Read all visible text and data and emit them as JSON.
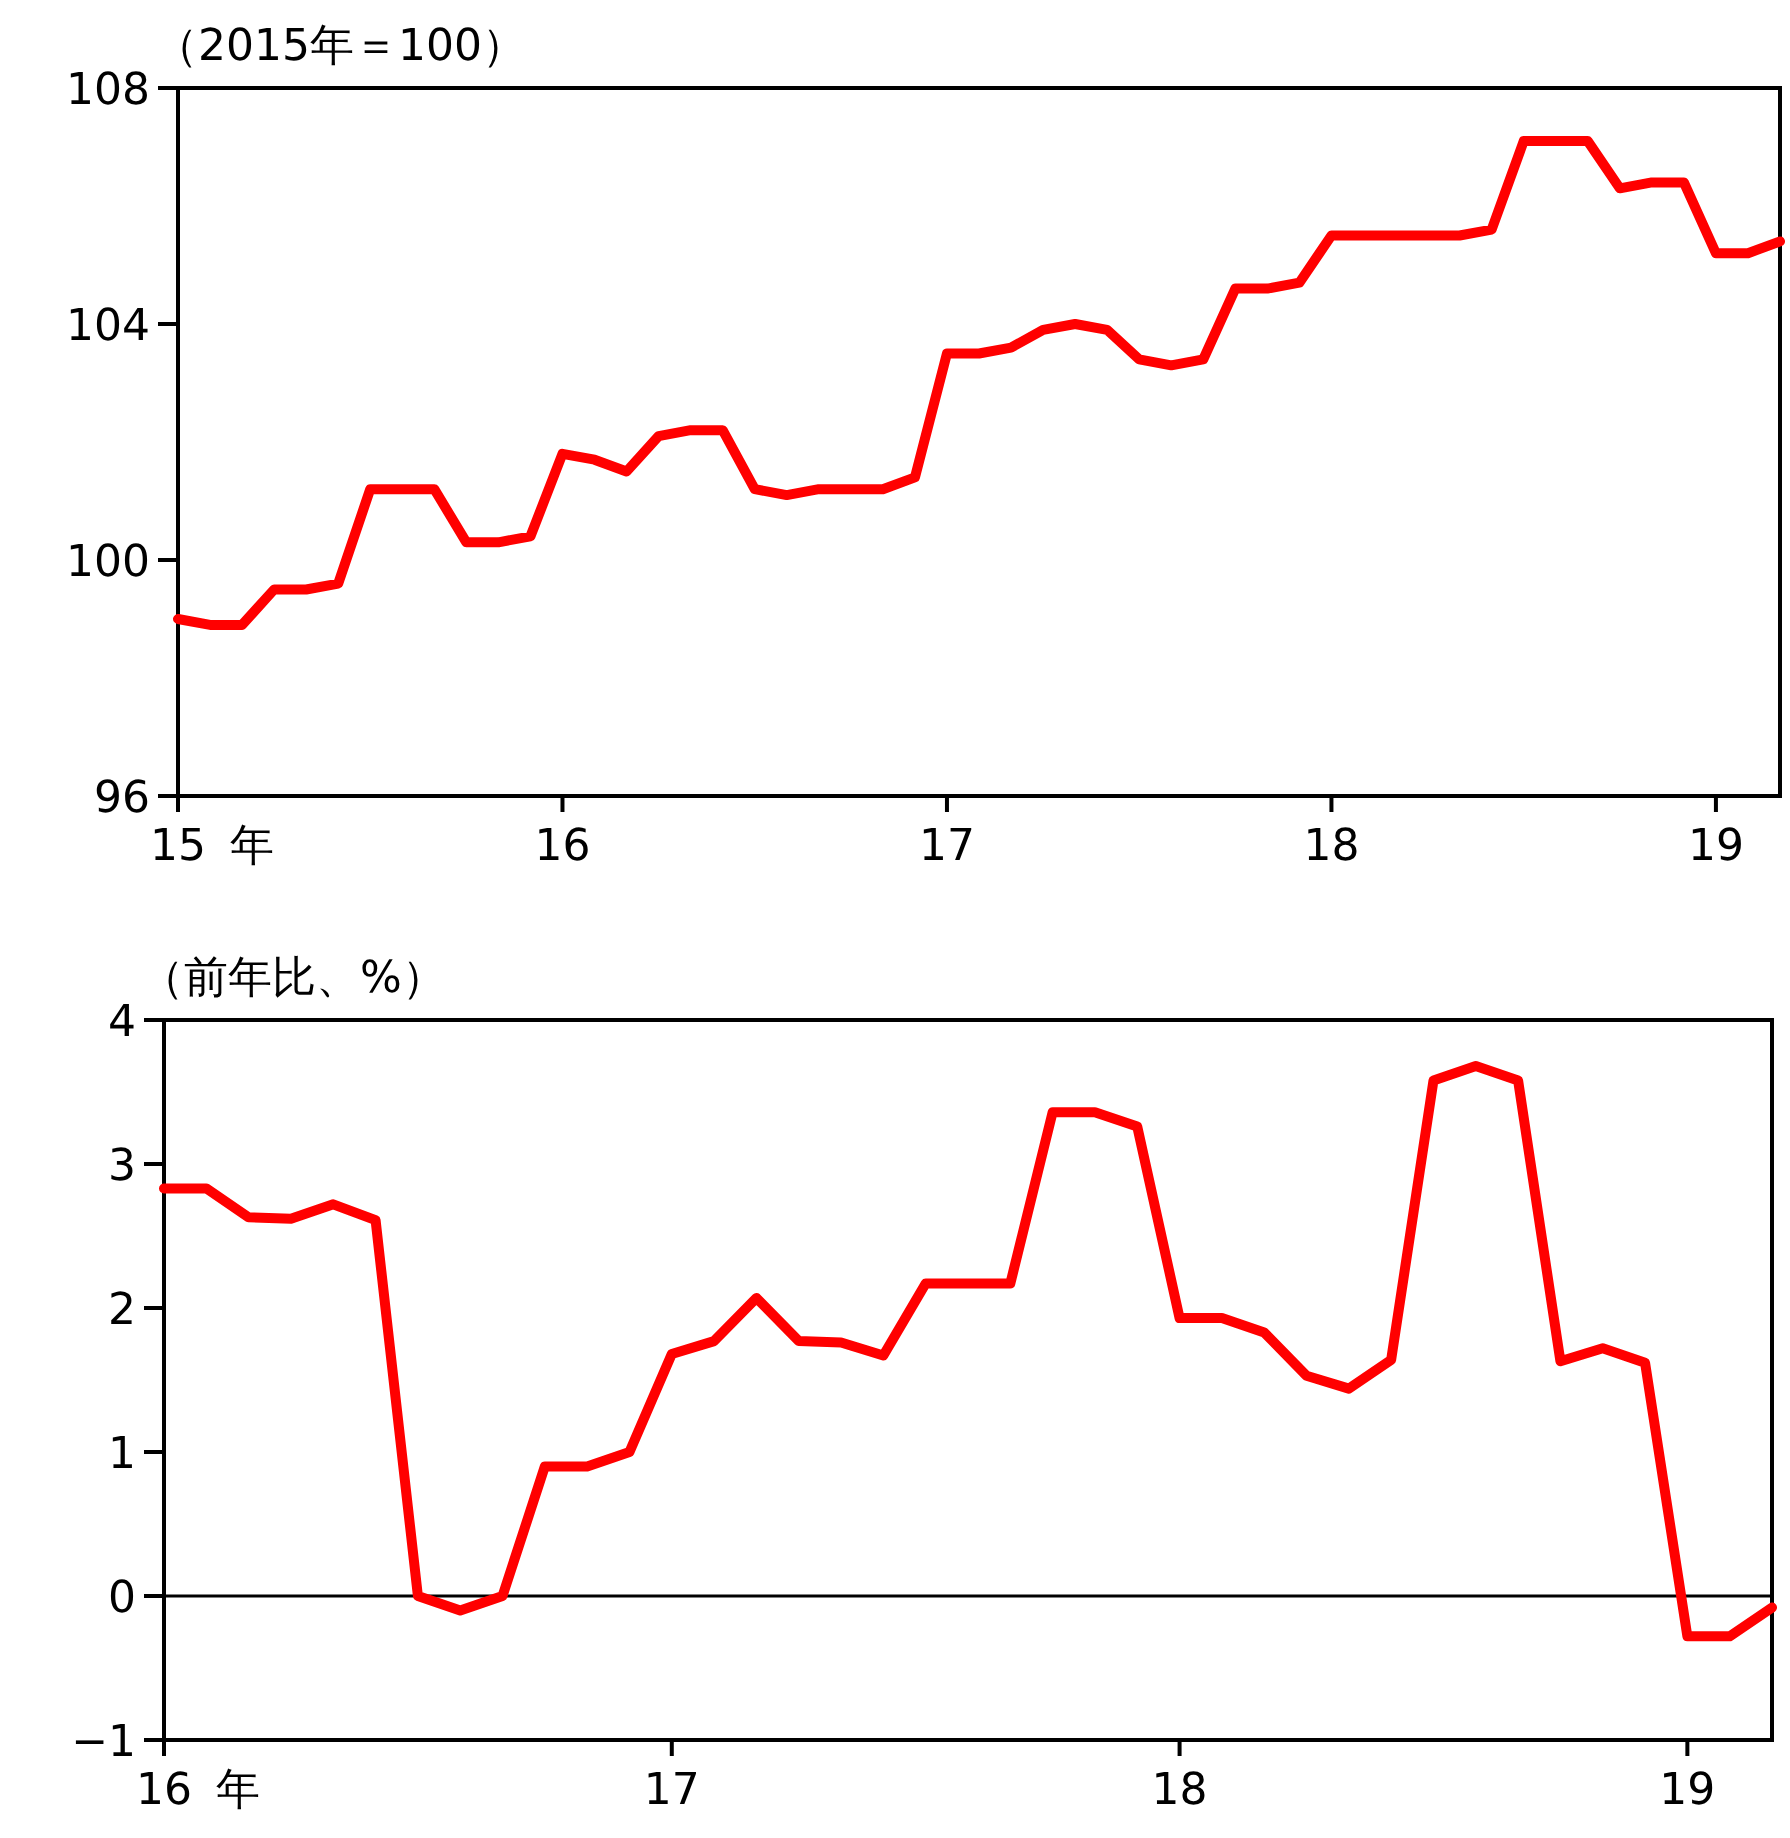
{
  "chart_data": [
    {
      "type": "line",
      "ylabel": "（2015年＝100）",
      "annotations": [
        "年"
      ],
      "x": [
        "2015-01",
        "2015-02",
        "2015-03",
        "2015-04",
        "2015-05",
        "2015-06",
        "2015-07",
        "2015-08",
        "2015-09",
        "2015-10",
        "2015-11",
        "2015-12",
        "2016-01",
        "2016-02",
        "2016-03",
        "2016-04",
        "2016-05",
        "2016-06",
        "2016-07",
        "2016-08",
        "2016-09",
        "2016-10",
        "2016-11",
        "2016-12",
        "2017-01",
        "2017-02",
        "2017-03",
        "2017-04",
        "2017-05",
        "2017-06",
        "2017-07",
        "2017-08",
        "2017-09",
        "2017-10",
        "2017-11",
        "2017-12",
        "2018-01",
        "2018-02",
        "2018-03",
        "2018-04",
        "2018-05",
        "2018-06",
        "2018-07",
        "2018-08",
        "2018-09",
        "2018-10",
        "2018-11",
        "2018-12",
        "2019-01",
        "2019-02",
        "2019-03"
      ],
      "series": [
        {
          "color": "#ff0000",
          "values": [
            99.0,
            98.9,
            98.9,
            99.5,
            99.5,
            99.6,
            101.2,
            101.2,
            101.2,
            100.3,
            100.3,
            100.4,
            101.8,
            101.7,
            101.5,
            102.1,
            102.2,
            102.2,
            101.2,
            101.1,
            101.2,
            101.2,
            101.2,
            101.4,
            103.5,
            103.5,
            103.6,
            103.9,
            104.0,
            103.9,
            103.4,
            103.3,
            103.4,
            104.6,
            104.6,
            104.7,
            105.5,
            105.5,
            105.5,
            105.5,
            105.5,
            105.6,
            107.1,
            107.1,
            107.1,
            106.3,
            106.4,
            106.4,
            105.2,
            105.2,
            105.4
          ]
        }
      ],
      "xlim": [
        "2015-01",
        "2019-03"
      ],
      "ylim": [
        96,
        108
      ],
      "yticks": [
        96,
        100,
        104,
        108
      ],
      "xticks": [
        {
          "value": "2015-01",
          "label": "15"
        },
        {
          "value": "2016-01",
          "label": "16"
        },
        {
          "value": "2017-01",
          "label": "17"
        },
        {
          "value": "2018-01",
          "label": "18"
        },
        {
          "value": "2019-01",
          "label": "19"
        }
      ],
      "grid": false
    },
    {
      "type": "line",
      "ylabel": "（前年比、%）",
      "annotations": [
        "年"
      ],
      "x": [
        "2016-01",
        "2016-02",
        "2016-03",
        "2016-04",
        "2016-05",
        "2016-06",
        "2016-07",
        "2016-08",
        "2016-09",
        "2016-10",
        "2016-11",
        "2016-12",
        "2017-01",
        "2017-02",
        "2017-03",
        "2017-04",
        "2017-05",
        "2017-06",
        "2017-07",
        "2017-08",
        "2017-09",
        "2017-10",
        "2017-11",
        "2017-12",
        "2018-01",
        "2018-02",
        "2018-03",
        "2018-04",
        "2018-05",
        "2018-06",
        "2018-07",
        "2018-08",
        "2018-09",
        "2018-10",
        "2018-11",
        "2018-12",
        "2019-01",
        "2019-02",
        "2019-03"
      ],
      "series": [
        {
          "color": "#ff0000",
          "values": [
            2.83,
            2.83,
            2.63,
            2.62,
            2.72,
            2.61,
            0.0,
            -0.1,
            0.0,
            0.9,
            0.9,
            1.0,
            1.68,
            1.77,
            2.07,
            1.77,
            1.76,
            1.67,
            2.17,
            2.17,
            2.17,
            3.36,
            3.36,
            3.26,
            1.93,
            1.93,
            1.83,
            1.53,
            1.44,
            1.64,
            3.58,
            3.68,
            3.58,
            1.63,
            1.72,
            1.62,
            -0.28,
            -0.28,
            -0.08
          ]
        }
      ],
      "xlim": [
        "2016-01",
        "2019-03"
      ],
      "ylim": [
        -1,
        4
      ],
      "yticks": [
        -1,
        0,
        1,
        2,
        3,
        4
      ],
      "xticks": [
        {
          "value": "2016-01",
          "label": "16"
        },
        {
          "value": "2017-01",
          "label": "17"
        },
        {
          "value": "2018-01",
          "label": "18"
        },
        {
          "value": "2019-01",
          "label": "19"
        }
      ],
      "ref_lines": [
        {
          "axis": "y",
          "value": 0,
          "color": "#000000"
        }
      ],
      "grid": false
    }
  ]
}
